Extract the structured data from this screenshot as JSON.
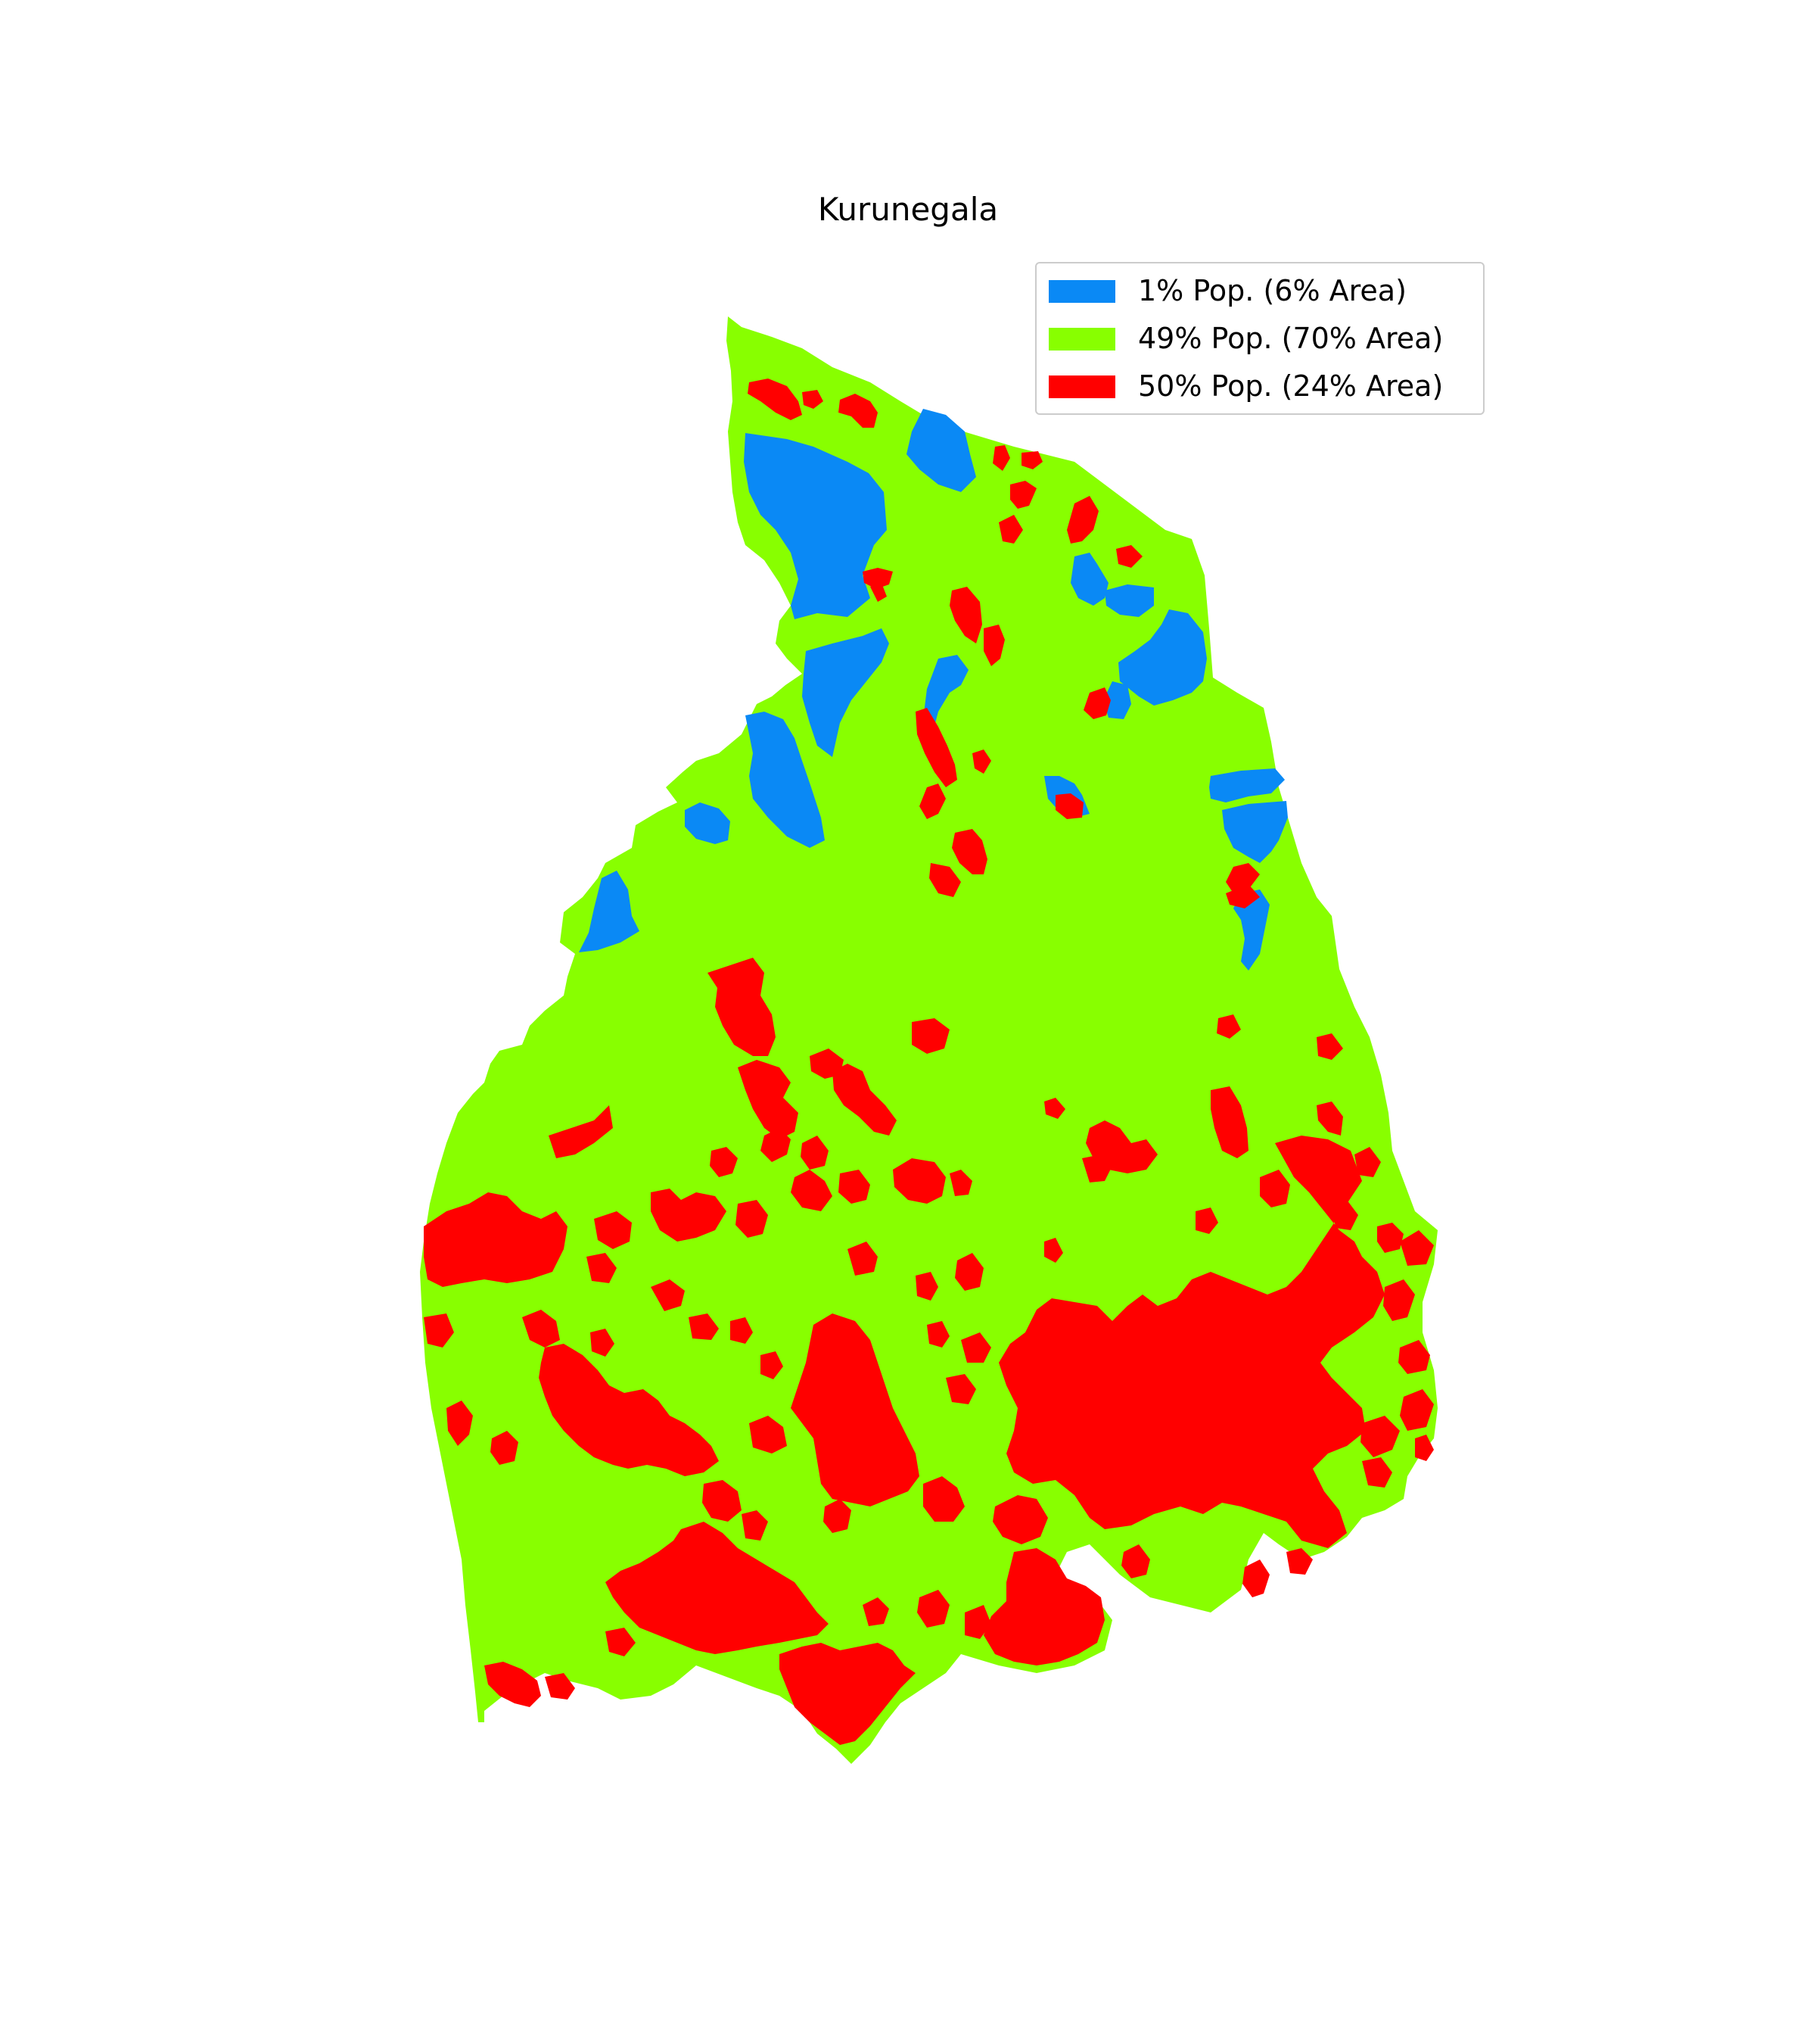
{
  "title": "Kurunegala",
  "colors": {
    "low": "#0a89f5",
    "mid": "#88ff00",
    "high": "#ff0000"
  },
  "legend": [
    {
      "label": "1% Pop. (6% Area)",
      "color": "#0a89f5"
    },
    {
      "label": "49% Pop. (70% Area)",
      "color": "#88ff00"
    },
    {
      "label": "50% Pop. (24% Area)",
      "color": "#ff0000"
    }
  ]
}
